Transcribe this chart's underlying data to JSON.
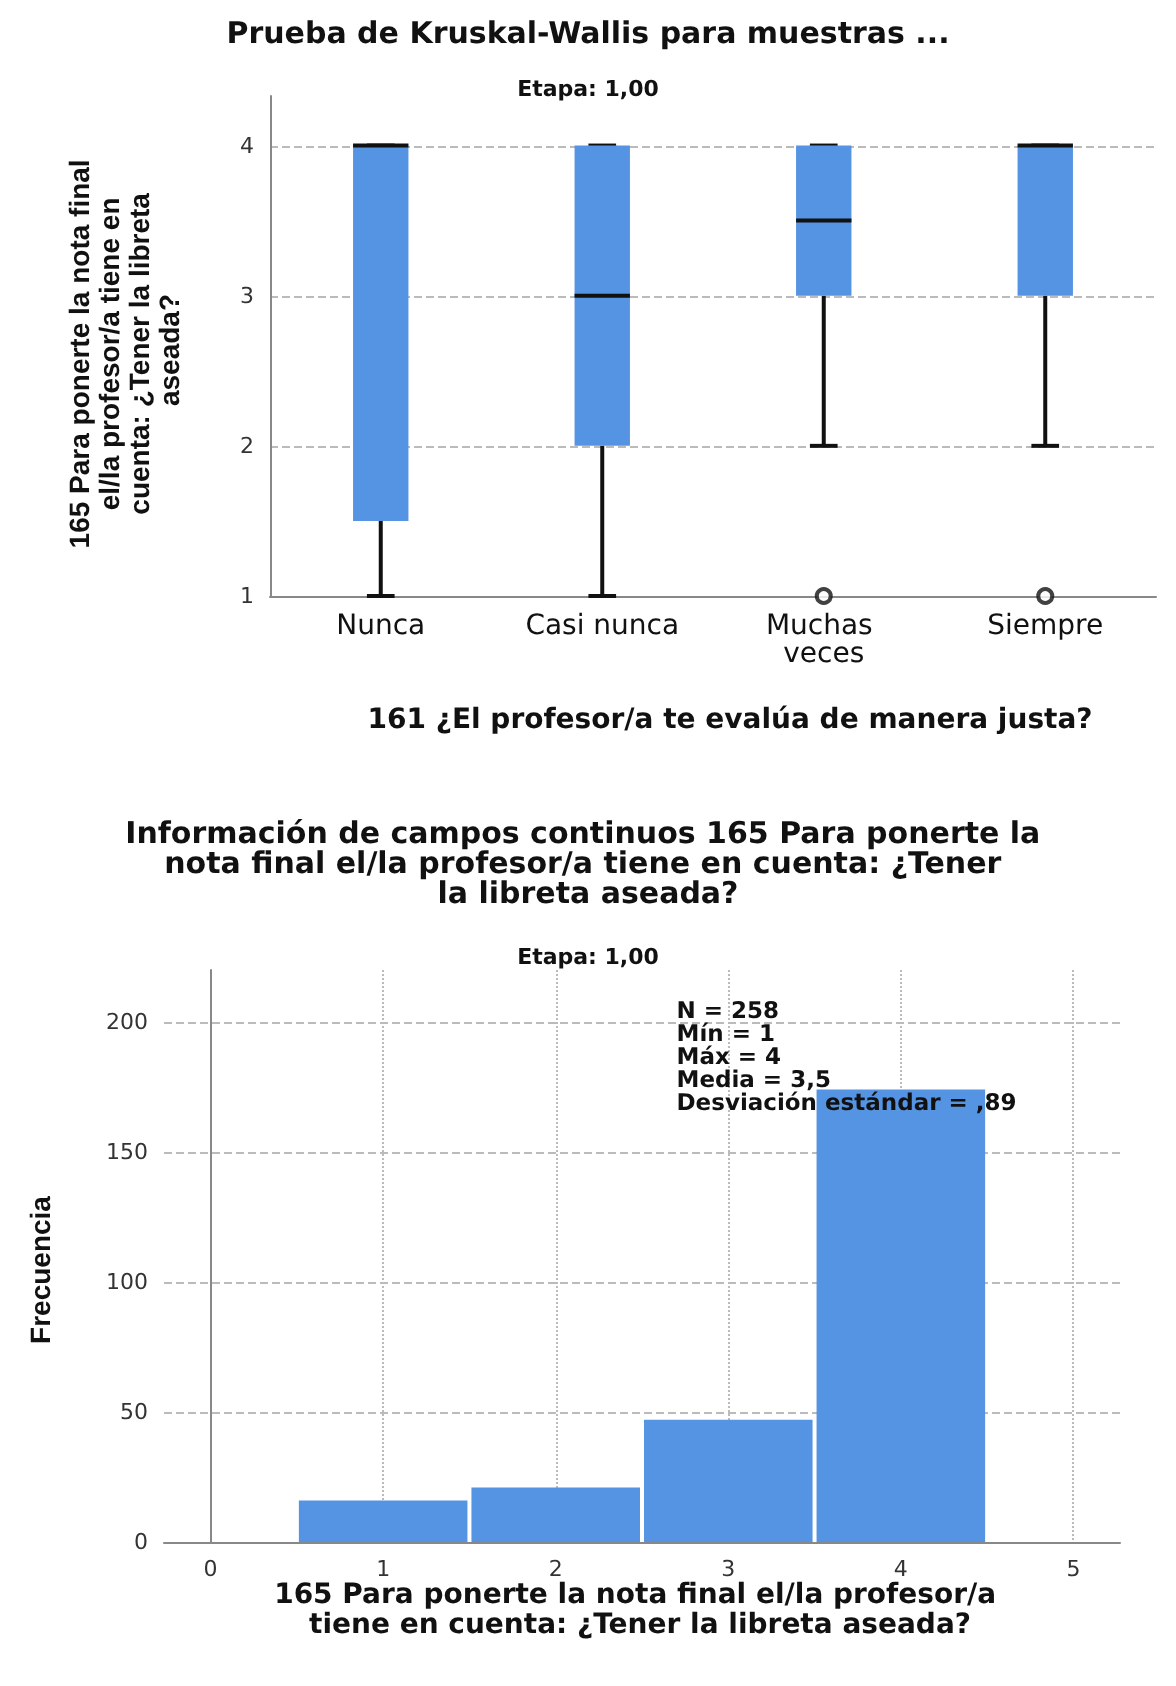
{
  "chart_data": [
    {
      "type": "box",
      "title": "Prueba de Kruskal-Wallis para muestras ...",
      "subtitle": "Etapa: 1,00",
      "xlabel": "161 ¿El profesor/a te evalúa de manera justa?",
      "ylabel": "165 Para ponerte la nota final el/la profesor/a tiene en cuenta: ¿Tener la libreta aseada?",
      "categories": [
        "Nunca",
        "Casi nunca",
        "Muchas veces",
        "Siempre"
      ],
      "color": "#5593e3",
      "boxes": [
        {
          "low": 1,
          "q1": 1.5,
          "median": 4,
          "q3": 4,
          "high": 4
        },
        {
          "low": 1,
          "q1": 2,
          "median": 3,
          "q3": 4,
          "high": 4
        },
        {
          "low": 2,
          "q1": 3,
          "median": 3.5,
          "q3": 4,
          "high": 4,
          "outliers": [
            1
          ]
        },
        {
          "low": 2,
          "q1": 3,
          "median": 4,
          "q3": 4,
          "high": 4,
          "outliers": [
            1
          ]
        }
      ],
      "ylim": [
        1,
        4.33
      ],
      "yticks": [
        1,
        2,
        3,
        4
      ],
      "grid": "y"
    },
    {
      "type": "histogram",
      "title": "Información de campos continuos 165 Para ponerte la nota final el/la profesor/a tiene en cuenta: ¿Tener la libreta aseada?",
      "subtitle": "Etapa: 1,00",
      "xlabel": "165 Para ponerte la nota final el/la profesor/a tiene en cuenta: ¿Tener la libreta aseada?",
      "ylabel": "Frecuencia",
      "color": "#5593e3",
      "bins": [
        0.5,
        1.5,
        2.5,
        3.5,
        4.5
      ],
      "values": [
        16,
        21,
        47,
        174
      ],
      "xlim": [
        -0.27,
        5.27
      ],
      "xticks": [
        0,
        1,
        2,
        3,
        4,
        5
      ],
      "ylim": [
        0,
        220
      ],
      "yticks": [
        0,
        50,
        100,
        150,
        200
      ],
      "grid": true,
      "annotations": [
        "N = 258",
        "Mín = 1",
        "Máx = 4",
        "Media = 3,5",
        "Desviación estándar = ,89"
      ]
    }
  ]
}
